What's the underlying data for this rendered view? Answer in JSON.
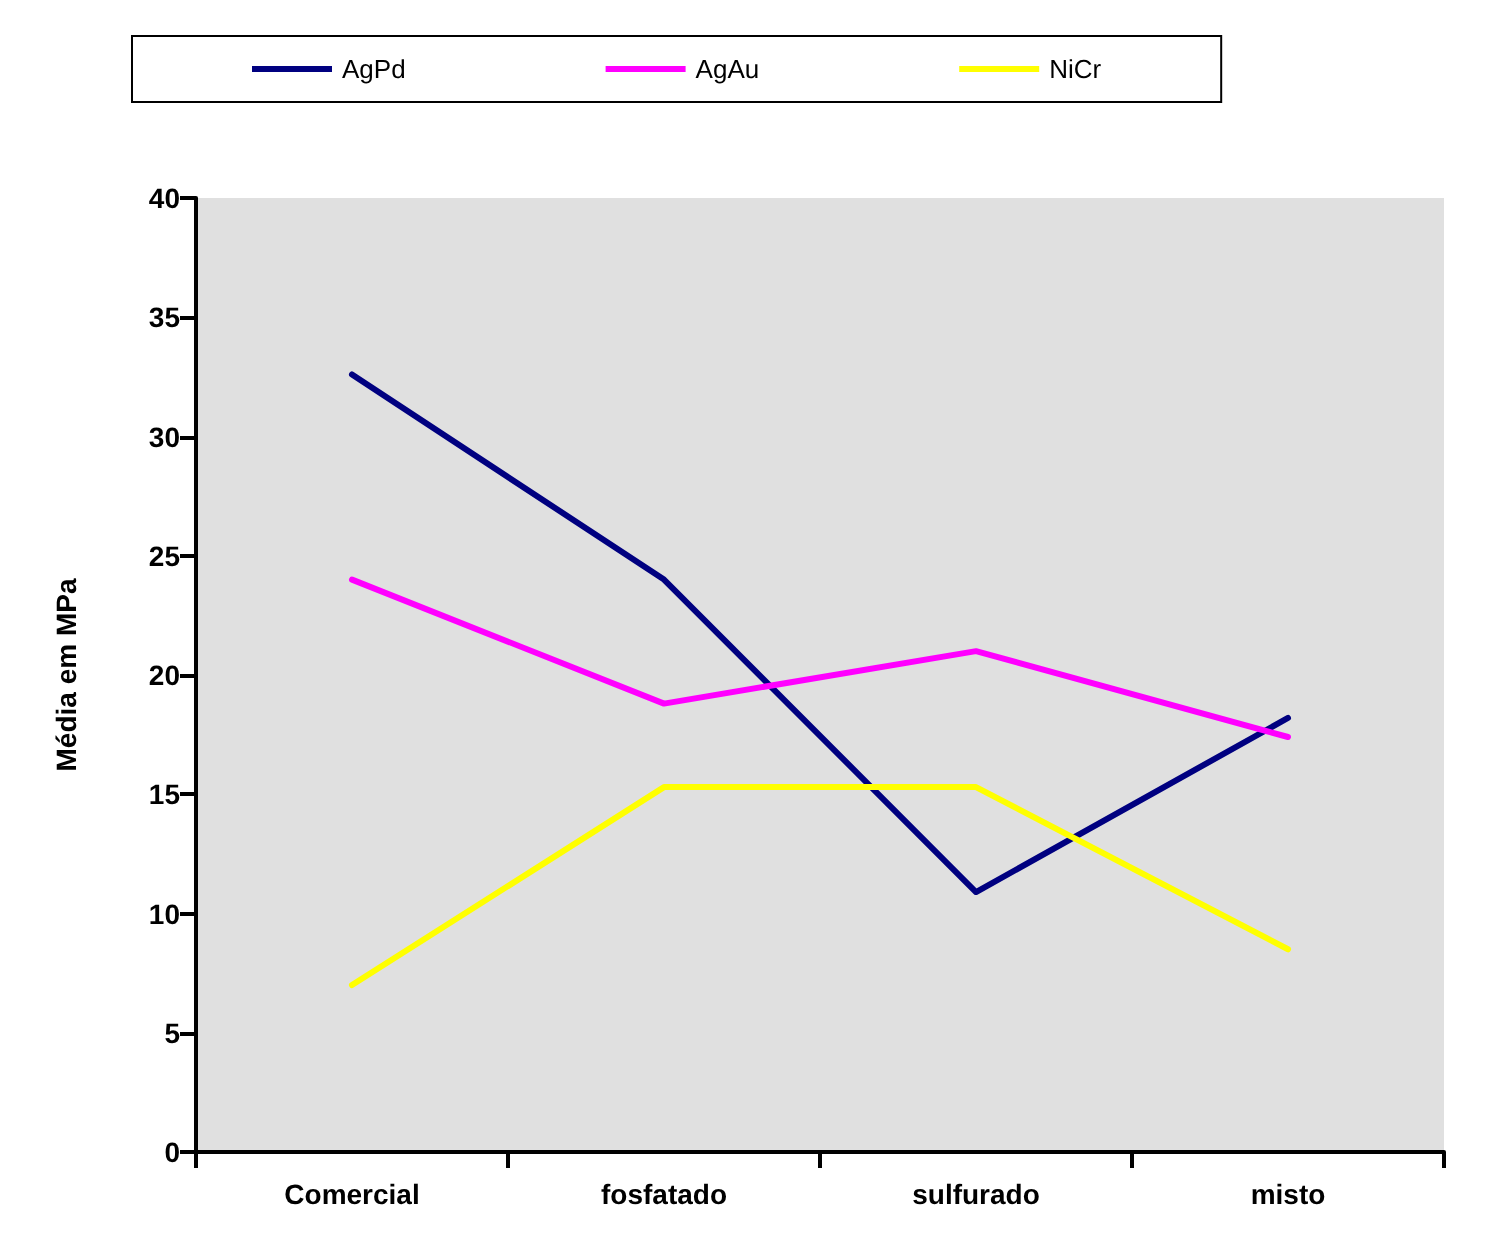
{
  "chart_data": {
    "type": "line",
    "ylabel": "Média em MPa",
    "categories": [
      "Comercial",
      "fosfatado",
      "sulfurado",
      "misto"
    ],
    "series": [
      {
        "name": "AgPd",
        "color": "#000080",
        "values": [
          32.6,
          24.0,
          10.9,
          18.2
        ]
      },
      {
        "name": "AgAu",
        "color": "#ff00ff",
        "values": [
          24.0,
          18.8,
          21.0,
          17.4
        ]
      },
      {
        "name": "NiCr",
        "color": "#ffff00",
        "values": [
          7.0,
          15.3,
          15.3,
          8.5
        ]
      }
    ],
    "ylim": [
      0,
      40
    ],
    "yticks": [
      0,
      5,
      10,
      15,
      20,
      25,
      30,
      35,
      40
    ],
    "grid": false,
    "legend": "top",
    "marker": "none",
    "line_style": "solid"
  }
}
